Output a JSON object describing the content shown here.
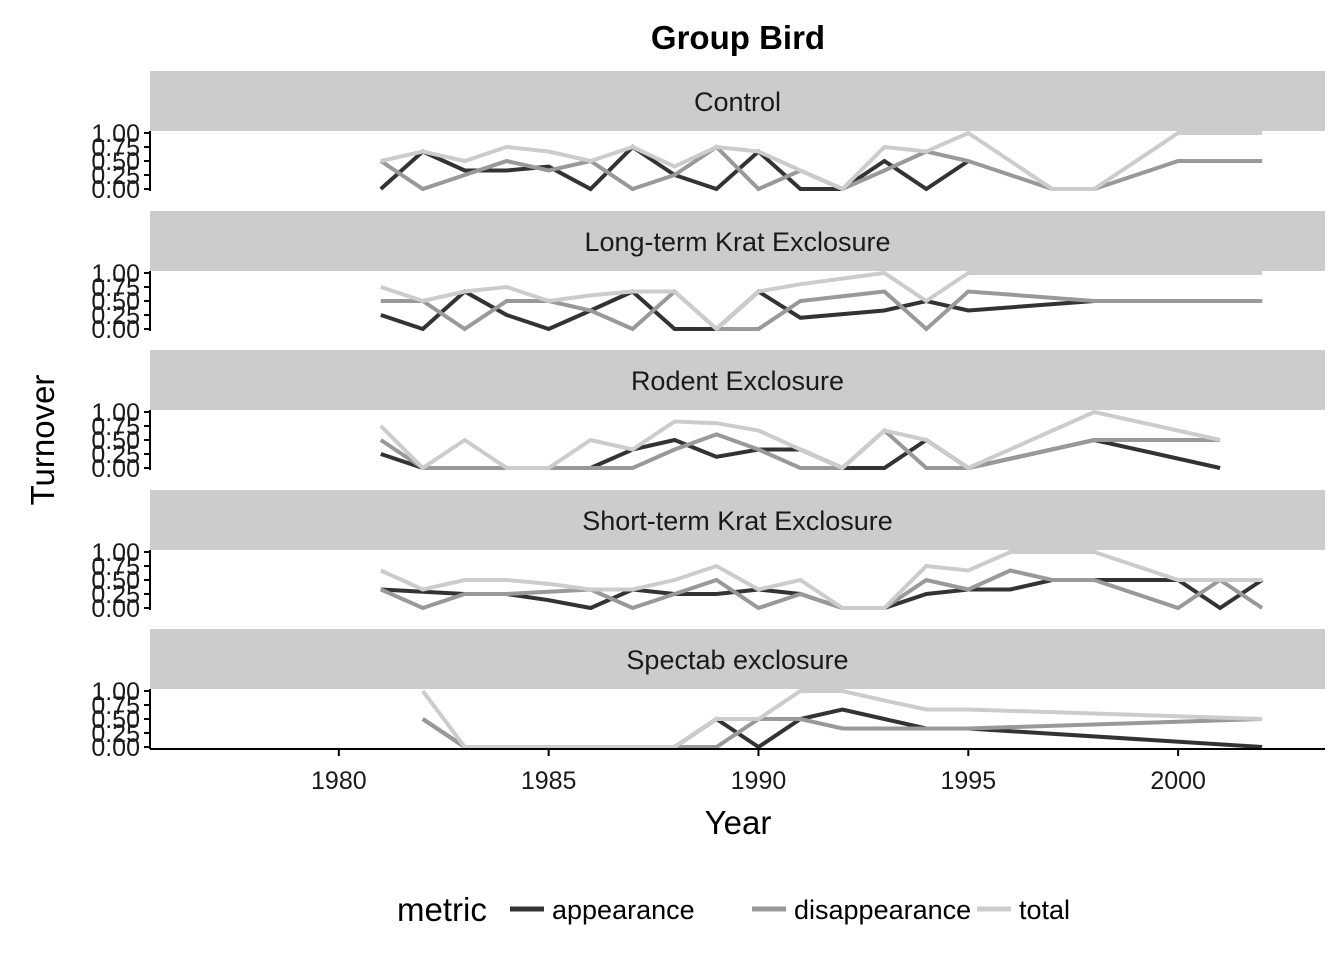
{
  "chart_data": {
    "type": "line",
    "title": "Group Bird",
    "xlabel": "Year",
    "ylabel": "Turnover",
    "xlim": [
      1975.5,
      2003.5
    ],
    "ylim": [
      0,
      1
    ],
    "x_ticks": [
      "1980",
      "1985",
      "1990",
      "1995",
      "2000"
    ],
    "y_ticks": [
      "0.00",
      "0.25",
      "0.50",
      "0.75",
      "1.00"
    ],
    "legend": {
      "title": "metric",
      "position": "bottom",
      "entries": [
        "appearance",
        "disappearance",
        "total"
      ]
    },
    "colors": {
      "appearance": "#333333",
      "disappearance": "#999999",
      "total": "#cccccc",
      "strip_bg": "#cccccc"
    },
    "panels": [
      {
        "name": "Control",
        "series": [
          {
            "name": "appearance",
            "x": [
              1981,
              1982,
              1983,
              1984,
              1985,
              1986,
              1987,
              1988,
              1989,
              1990,
              1991,
              1992,
              1993,
              1994,
              1995
            ],
            "y": [
              0,
              0.67,
              0.33,
              0.33,
              0.4,
              0,
              0.75,
              0.25,
              0,
              0.67,
              0,
              0,
              0.5,
              0,
              0.5
            ]
          },
          {
            "name": "disappearance",
            "x": [
              1981,
              1982,
              1983,
              1984,
              1985,
              1986,
              1987,
              1988,
              1989,
              1990,
              1991,
              1992,
              1993,
              1994,
              1995,
              1997,
              1998,
              2000,
              2002
            ],
            "y": [
              0.5,
              0,
              0.25,
              0.5,
              0.33,
              0.5,
              0,
              0.25,
              0.75,
              0,
              0.33,
              0,
              0.33,
              0.67,
              0.5,
              0,
              0,
              0.5,
              0.5
            ]
          },
          {
            "name": "total",
            "x": [
              1981,
              1982,
              1983,
              1984,
              1985,
              1986,
              1987,
              1988,
              1989,
              1990,
              1991,
              1992,
              1993,
              1994,
              1995,
              1997,
              1998,
              2000,
              2002
            ],
            "y": [
              0.5,
              0.67,
              0.5,
              0.75,
              0.67,
              0.5,
              0.75,
              0.4,
              0.75,
              0.67,
              0.33,
              0,
              0.75,
              0.67,
              1,
              0,
              0,
              1,
              1
            ]
          }
        ]
      },
      {
        "name": "Long-term Krat Exclosure",
        "series": [
          {
            "name": "appearance",
            "x": [
              1981,
              1982,
              1983,
              1984,
              1985,
              1986,
              1987,
              1988,
              1989,
              1990,
              1991,
              1993,
              1994,
              1995,
              1998,
              2002
            ],
            "y": [
              0.25,
              0,
              0.67,
              0.25,
              0,
              0.33,
              0.67,
              0,
              0,
              0.67,
              0.2,
              0.33,
              0.5,
              0.33,
              0.5,
              0.5
            ]
          },
          {
            "name": "disappearance",
            "x": [
              1981,
              1982,
              1983,
              1984,
              1985,
              1986,
              1987,
              1988,
              1989,
              1990,
              1991,
              1993,
              1994,
              1995,
              1998,
              2002
            ],
            "y": [
              0.5,
              0.5,
              0,
              0.5,
              0.5,
              0.33,
              0,
              0.67,
              0,
              0,
              0.5,
              0.67,
              0,
              0.67,
              0.5,
              0.5
            ]
          },
          {
            "name": "total",
            "x": [
              1981,
              1982,
              1983,
              1984,
              1985,
              1986,
              1987,
              1988,
              1989,
              1990,
              1991,
              1993,
              1994,
              1995,
              1998,
              2002
            ],
            "y": [
              0.75,
              0.5,
              0.67,
              0.75,
              0.5,
              0.6,
              0.67,
              0.67,
              0,
              0.67,
              0.8,
              1,
              0.5,
              1,
              1,
              1
            ]
          }
        ]
      },
      {
        "name": "Rodent Exclosure",
        "series": [
          {
            "name": "appearance",
            "x": [
              1981,
              1982,
              1983,
              1984,
              1985,
              1986,
              1987,
              1988,
              1989,
              1990,
              1991,
              1992,
              1993,
              1994,
              1995,
              1998,
              2001
            ],
            "y": [
              0.25,
              0,
              0,
              0,
              0,
              0,
              0.33,
              0.5,
              0.2,
              0.33,
              0.33,
              0,
              0,
              0.5,
              0,
              0.5,
              0
            ]
          },
          {
            "name": "disappearance",
            "x": [
              1981,
              1982,
              1983,
              1984,
              1985,
              1986,
              1987,
              1988,
              1989,
              1990,
              1991,
              1992,
              1993,
              1994,
              1995,
              1998,
              2001
            ],
            "y": [
              0.5,
              0,
              0,
              0,
              0,
              0,
              0,
              0.33,
              0.6,
              0.33,
              0,
              0,
              0.67,
              0,
              0,
              0.5,
              0.5
            ]
          },
          {
            "name": "total",
            "x": [
              1981,
              1982,
              1983,
              1984,
              1985,
              1986,
              1987,
              1988,
              1989,
              1990,
              1991,
              1992,
              1993,
              1994,
              1995,
              1998,
              2001
            ],
            "y": [
              0.75,
              0,
              0.5,
              0,
              0,
              0.5,
              0.33,
              0.83,
              0.8,
              0.67,
              0.33,
              0,
              0.67,
              0.5,
              0,
              1,
              0.5
            ]
          }
        ]
      },
      {
        "name": "Short-term Krat Exclosure",
        "series": [
          {
            "name": "appearance",
            "x": [
              1981,
              1983,
              1984,
              1985,
              1986,
              1987,
              1988,
              1989,
              1990,
              1991,
              1992,
              1993,
              1994,
              1995,
              1996,
              1997,
              1998,
              2000,
              2001,
              2002
            ],
            "y": [
              0.33,
              0.25,
              0.25,
              0.14,
              0,
              0.33,
              0.25,
              0.25,
              0.33,
              0.25,
              0,
              0,
              0.25,
              0.33,
              0.33,
              0.5,
              0.5,
              0.5,
              0,
              0.5
            ]
          },
          {
            "name": "disappearance",
            "x": [
              1981,
              1982,
              1983,
              1984,
              1985,
              1986,
              1987,
              1988,
              1989,
              1990,
              1991,
              1992,
              1993,
              1994,
              1995,
              1996,
              1997,
              1998,
              2000,
              2001,
              2002
            ],
            "y": [
              0.33,
              0,
              0.25,
              0.25,
              0.29,
              0.33,
              0,
              0.25,
              0.5,
              0,
              0.25,
              0,
              0,
              0.5,
              0.33,
              0.67,
              0.5,
              0.5,
              0,
              0.5,
              0
            ]
          },
          {
            "name": "total",
            "x": [
              1981,
              1982,
              1983,
              1984,
              1985,
              1986,
              1987,
              1988,
              1989,
              1990,
              1991,
              1992,
              1993,
              1994,
              1995,
              1996,
              1997,
              1998,
              2000,
              2001,
              2002
            ],
            "y": [
              0.67,
              0.33,
              0.5,
              0.5,
              0.43,
              0.33,
              0.33,
              0.5,
              0.75,
              0.33,
              0.5,
              0,
              0,
              0.75,
              0.67,
              1,
              1,
              1,
              0.5,
              0.5,
              0.5
            ]
          }
        ]
      },
      {
        "name": "Spectab exclosure",
        "series": [
          {
            "name": "appearance",
            "x": [
              1982,
              1983,
              1984,
              1985,
              1986,
              1987,
              1988,
              1989,
              1990,
              1991,
              1992,
              1993,
              1994,
              1995,
              2002
            ],
            "y": [
              0.5,
              0,
              0,
              0,
              0,
              0,
              0,
              0.5,
              0,
              0.5,
              0.67,
              0.5,
              0.33,
              0.33,
              0
            ]
          },
          {
            "name": "disappearance",
            "x": [
              1982,
              1983,
              1984,
              1985,
              1986,
              1987,
              1988,
              1989,
              1990,
              1991,
              1992,
              1993,
              1994,
              1995,
              2002
            ],
            "y": [
              0.5,
              0,
              0,
              0,
              0,
              0,
              0,
              0,
              0.5,
              0.5,
              0.33,
              0.33,
              0.33,
              0.33,
              0.5
            ]
          },
          {
            "name": "total",
            "x": [
              1982,
              1983,
              1984,
              1985,
              1986,
              1987,
              1988,
              1989,
              1990,
              1991,
              1992,
              1993,
              1994,
              1995,
              2002
            ],
            "y": [
              1,
              0,
              0,
              0,
              0,
              0,
              0,
              0.5,
              0.5,
              1,
              1,
              0.83,
              0.67,
              0.67,
              0.5
            ]
          }
        ]
      }
    ]
  }
}
